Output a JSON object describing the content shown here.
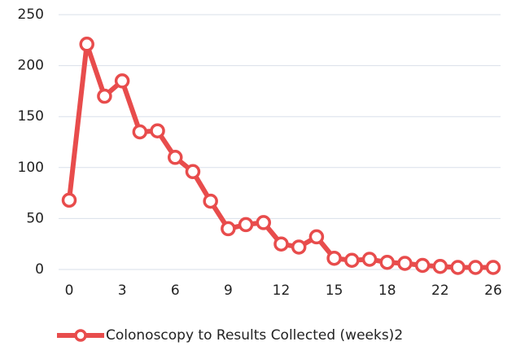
{
  "chart_data": {
    "type": "line",
    "categories": [
      "0",
      null,
      null,
      "3",
      null,
      null,
      "6",
      null,
      null,
      "9",
      null,
      null,
      "12",
      null,
      null,
      "15",
      null,
      null,
      "18",
      null,
      null,
      "22",
      null,
      null,
      "26"
    ],
    "series": [
      {
        "name": "Colonoscopy to Results Collected (weeks)2",
        "color": "#e84c4c",
        "values": [
          68,
          221,
          170,
          185,
          135,
          136,
          110,
          96,
          67,
          40,
          44,
          46,
          25,
          22,
          32,
          11,
          9,
          10,
          7,
          6,
          4,
          3,
          2,
          2,
          2
        ]
      }
    ],
    "ylim": [
      0,
      250
    ],
    "yticks": [
      0,
      50,
      100,
      150,
      200,
      250
    ],
    "grid": true,
    "legend": "bottom"
  }
}
